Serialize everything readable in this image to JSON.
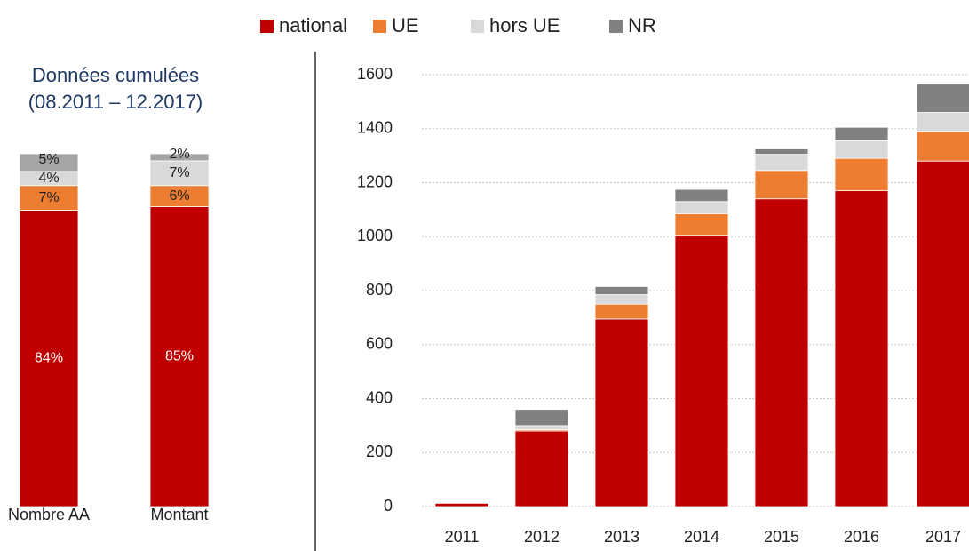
{
  "chart_data": [
    {
      "type": "bar",
      "stacked": true,
      "title": "Données cumulées",
      "subtitle": "(08.2011 – 12.2017)",
      "categories": [
        "Nombre AA",
        "Montant"
      ],
      "series": [
        {
          "name": "national",
          "color": "#c00000",
          "values": [
            84,
            85
          ],
          "value_labels": [
            "84%",
            "85%"
          ]
        },
        {
          "name": "UE",
          "color": "#ed7d31",
          "values": [
            7,
            6
          ],
          "value_labels": [
            "7%",
            "6%"
          ]
        },
        {
          "name": "hors UE",
          "color": "#d9d9d9",
          "values": [
            4,
            7
          ],
          "value_labels": [
            "4%",
            "7%"
          ]
        },
        {
          "name": "NR",
          "color": "#a5a5a5",
          "values": [
            5,
            2
          ],
          "value_labels": [
            "5%",
            "2%"
          ]
        }
      ]
    },
    {
      "type": "bar",
      "stacked": true,
      "categories": [
        "2011",
        "2012",
        "2013",
        "2014",
        "2015",
        "2016",
        "2017"
      ],
      "series": [
        {
          "name": "national",
          "color": "#c00000",
          "values": [
            12,
            280,
            695,
            1005,
            1140,
            1170,
            1280
          ]
        },
        {
          "name": "UE",
          "color": "#ed7d31",
          "values": [
            0,
            5,
            55,
            80,
            105,
            120,
            110
          ]
        },
        {
          "name": "hors UE",
          "color": "#d9d9d9",
          "values": [
            0,
            15,
            35,
            45,
            60,
            65,
            70
          ]
        },
        {
          "name": "NR",
          "color": "#808080",
          "values": [
            0,
            60,
            30,
            45,
            20,
            50,
            105
          ]
        }
      ],
      "ylim": [
        0,
        1600
      ],
      "yticks": [
        0,
        200,
        400,
        600,
        800,
        1000,
        1200,
        1400,
        1600
      ],
      "grid": true
    }
  ]
}
